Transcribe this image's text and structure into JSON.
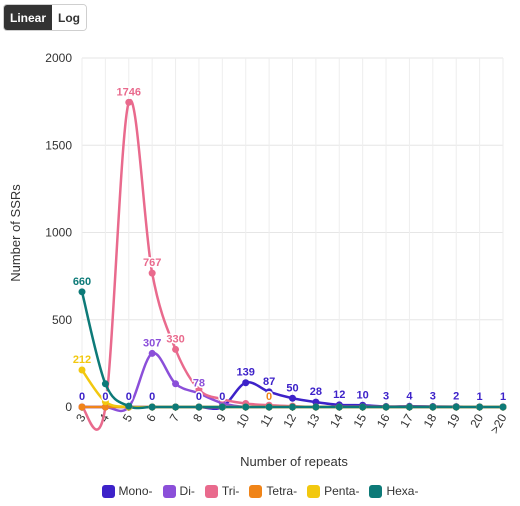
{
  "toggle": {
    "linear_label": "Linear",
    "log_label": "Log",
    "active": "Linear"
  },
  "chart_data": {
    "type": "line",
    "title": "",
    "xlabel": "Number of repeats",
    "ylabel": "Number of SSRs",
    "categories": [
      "3",
      "4",
      "5",
      "6",
      "7",
      "8",
      "9",
      "10",
      "11",
      "12",
      "13",
      "14",
      "15",
      "16",
      "17",
      "18",
      "19",
      "20",
      ">20"
    ],
    "ylim": [
      0,
      2000
    ],
    "yticks": [
      0,
      500,
      1000,
      1500,
      2000
    ],
    "grid": true,
    "legend_position": "bottom",
    "series": [
      {
        "name": "Mono-",
        "color": "#3d22c9",
        "values": [
          0,
          0,
          0,
          0,
          0,
          0,
          0,
          139,
          87,
          50,
          28,
          12,
          10,
          3,
          4,
          3,
          2,
          1,
          1
        ],
        "labels": [
          "0",
          "0",
          "0",
          "0",
          "",
          "0",
          "0",
          "139",
          "87",
          "50",
          "28",
          "12",
          "10",
          "3",
          "4",
          "3",
          "2",
          "1",
          "1"
        ]
      },
      {
        "name": "Di-",
        "color": "#8b4fd9",
        "values": [
          0,
          0,
          0,
          307,
          133,
          78,
          22,
          0,
          0,
          0,
          0,
          0,
          0,
          0,
          0,
          0,
          0,
          0,
          0
        ],
        "labels": [
          "",
          "",
          "",
          "307",
          "",
          "78",
          "",
          "",
          "",
          "",
          "",
          "",
          "",
          "",
          "",
          "",
          "",
          "",
          ""
        ]
      },
      {
        "name": "Tri-",
        "color": "#e96a8d",
        "values": [
          0,
          0,
          1746,
          767,
          330,
          100,
          45,
          20,
          10,
          5,
          0,
          0,
          0,
          0,
          0,
          0,
          0,
          0,
          0
        ],
        "labels": [
          "",
          "",
          "1746",
          "767",
          "330",
          "",
          "",
          "",
          "",
          "",
          "",
          "",
          "",
          "",
          "",
          "",
          "",
          "",
          ""
        ]
      },
      {
        "name": "Tetra-",
        "color": "#f08418",
        "values": [
          0,
          0,
          0,
          0,
          0,
          0,
          0,
          0,
          0,
          0,
          0,
          0,
          0,
          0,
          0,
          0,
          0,
          0,
          0
        ],
        "labels": [
          "",
          "",
          "",
          "",
          "",
          "",
          "",
          "",
          "0",
          "",
          "",
          "",
          "",
          "",
          "",
          "",
          "",
          "",
          ""
        ]
      },
      {
        "name": "Penta-",
        "color": "#f2c80f",
        "values": [
          212,
          30,
          0,
          0,
          0,
          0,
          0,
          0,
          0,
          0,
          0,
          0,
          0,
          0,
          0,
          0,
          0,
          0,
          0
        ],
        "labels": [
          "212",
          "",
          "",
          "",
          "",
          "",
          "",
          "",
          "",
          "",
          "",
          "",
          "",
          "",
          "",
          "",
          "",
          "",
          ""
        ]
      },
      {
        "name": "Hexa-",
        "color": "#0d7a78",
        "values": [
          660,
          133,
          5,
          0,
          0,
          0,
          0,
          0,
          0,
          0,
          0,
          0,
          0,
          0,
          0,
          0,
          0,
          0,
          0
        ],
        "labels": [
          "660",
          "",
          "",
          "",
          "",
          "",
          "",
          "",
          "",
          "",
          "",
          "",
          "",
          "",
          "",
          "",
          "",
          "",
          ""
        ]
      }
    ]
  }
}
